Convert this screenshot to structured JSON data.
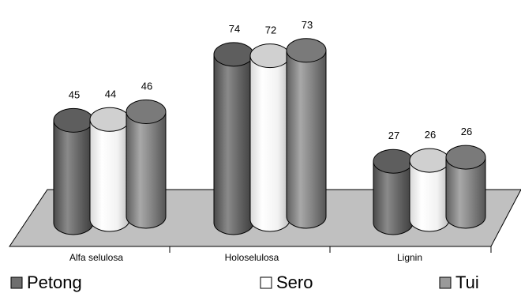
{
  "chart_data": {
    "type": "bar",
    "style": "3d-cylinder",
    "categories": [
      "Alfa selulosa",
      "Holoselulosa",
      "Lignin"
    ],
    "series": [
      {
        "name": "Petong",
        "values": [
          45,
          74,
          27
        ],
        "color": "#6e6e6e"
      },
      {
        "name": "Sero",
        "values": [
          44,
          72,
          26
        ],
        "color": "#ffffff"
      },
      {
        "name": "Tui",
        "values": [
          46,
          73,
          26
        ],
        "color": "#8c8c8c"
      }
    ],
    "ylim": [
      0,
      80
    ],
    "grid": false,
    "legend_position": "bottom",
    "floor_color": "#c0c0c0"
  }
}
